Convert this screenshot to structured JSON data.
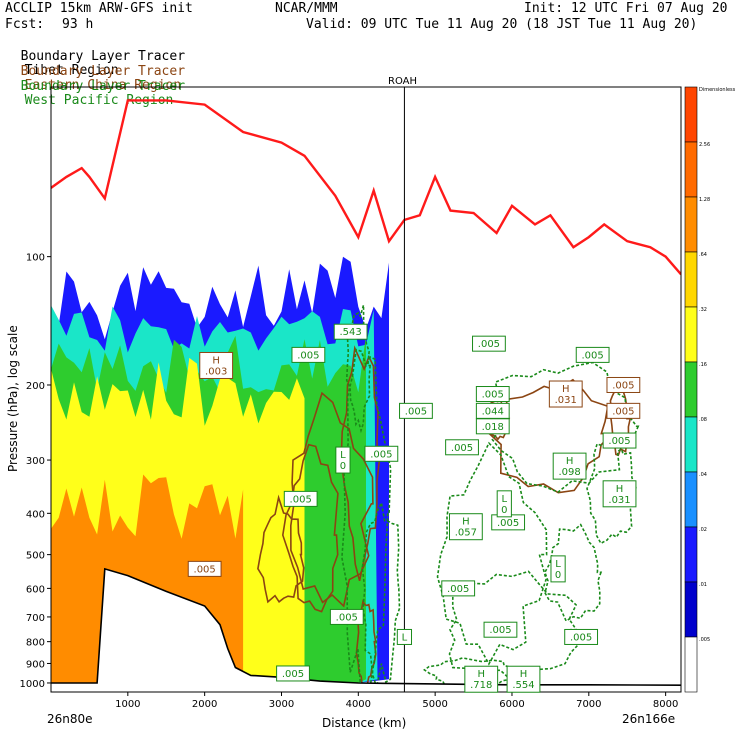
{
  "header": {
    "model": "ACCLIP 15km ARW-GFS init",
    "org": "NCAR/MMM",
    "init": "Init: 12 UTC Fri 07 Aug 20",
    "fcst_label": "Fcst:",
    "fcst_value": "93 h",
    "valid": "Valid: 09 UTC Tue 11 Aug 20 (18 JST Tue 11 Aug 20)"
  },
  "legend": [
    {
      "left": "Boundary Layer Tracer",
      "right": "Tibet Region",
      "color": "#000000"
    },
    {
      "left": "Boundary Layer Tracer",
      "right": "Eastern China Region",
      "color": "#8b4513"
    },
    {
      "left": "Boundary Layer Tracer",
      "right": "West Pacific Region",
      "color": "#1a8a1a"
    }
  ],
  "station_label": "ROAH",
  "colors": {
    "tropopause": "#ff1a1a",
    "terrain": "#000000",
    "china": "#8b4513",
    "pacific": "#1a8a1a",
    "fill_blue": "#1a1aff",
    "fill_green": "#2ecc2e",
    "fill_yellow": "#ffff1a",
    "fill_orange": "#ff8c00"
  },
  "chart_data": {
    "type": "cross-section",
    "xlabel": "Distance (km)",
    "ylabel": "Pressure (hPa), log scale",
    "x_ticks": [
      "1000",
      "2000",
      "3000",
      "4000",
      "5000",
      "6000",
      "7000",
      "8000"
    ],
    "y_ticks": [
      "100",
      "200",
      "300",
      "400",
      "500",
      "600",
      "700",
      "800",
      "900",
      "1000"
    ],
    "x_range": [
      0,
      8200
    ],
    "y_range": [
      40,
      1050
    ],
    "y_scale": "log",
    "left_endpoint": "26n80e",
    "right_endpoint": "26n166e",
    "station_x": 4600,
    "tropopause": [
      [
        0,
        69
      ],
      [
        200,
        65
      ],
      [
        400,
        62
      ],
      [
        500,
        65
      ],
      [
        700,
        73
      ],
      [
        1000,
        43
      ],
      [
        1500,
        43
      ],
      [
        2000,
        44
      ],
      [
        2500,
        51
      ],
      [
        3000,
        54
      ],
      [
        3300,
        58
      ],
      [
        3700,
        72
      ],
      [
        4000,
        90
      ],
      [
        4200,
        70
      ],
      [
        4400,
        92
      ],
      [
        4600,
        82
      ],
      [
        4800,
        80
      ],
      [
        5000,
        65
      ],
      [
        5200,
        78
      ],
      [
        5500,
        79
      ],
      [
        5800,
        88
      ],
      [
        6000,
        76
      ],
      [
        6300,
        84
      ],
      [
        6500,
        80
      ],
      [
        6800,
        95
      ],
      [
        7000,
        90
      ],
      [
        7200,
        84
      ],
      [
        7500,
        92
      ],
      [
        7800,
        95
      ],
      [
        8000,
        100
      ],
      [
        8200,
        110
      ]
    ],
    "terrain": [
      [
        0,
        1000
      ],
      [
        600,
        1000
      ],
      [
        700,
        540
      ],
      [
        1000,
        560
      ],
      [
        1500,
        610
      ],
      [
        2000,
        660
      ],
      [
        2200,
        730
      ],
      [
        2300,
        830
      ],
      [
        2400,
        920
      ],
      [
        2600,
        960
      ],
      [
        3000,
        970
      ],
      [
        3500,
        990
      ],
      [
        4000,
        1000
      ],
      [
        5000,
        1005
      ],
      [
        6000,
        1010
      ],
      [
        7000,
        1010
      ],
      [
        8200,
        1012
      ]
    ],
    "colorbar_labels": [
      "Dimensionless",
      "2.56",
      "1.28",
      ".64",
      ".32",
      ".16",
      ".08",
      ".04",
      ".02",
      ".01",
      ".005"
    ],
    "colorbar_colors": [
      "#ff4500",
      "#ff6a00",
      "#ff8c00",
      "#ffd700",
      "#ffff1a",
      "#2ecc2e",
      "#1ae6c8",
      "#1a90ff",
      "#1a1aff",
      "#0000cc",
      "#ffffff"
    ],
    "annotations": [
      {
        "text": ".005",
        "x": 2000,
        "p": 540,
        "color": "#8b4513"
      },
      {
        "text": "H .003",
        "x": 2150,
        "p": 180,
        "color": "#8b4513"
      },
      {
        "text": ".543",
        "x": 3900,
        "p": 150,
        "color": "#1a8a1a"
      },
      {
        "text": ".005",
        "x": 3350,
        "p": 170,
        "color": "#1a8a1a"
      },
      {
        "text": ".005",
        "x": 5700,
        "p": 160,
        "color": "#1a8a1a"
      },
      {
        "text": ".005",
        "x": 7050,
        "p": 170,
        "color": "#1a8a1a"
      },
      {
        "text": ".005",
        "x": 4750,
        "p": 230,
        "color": "#1a8a1a"
      },
      {
        "text": ".005",
        "x": 4300,
        "p": 290,
        "color": "#1a8a1a"
      },
      {
        "text": ".005",
        "x": 5350,
        "p": 280,
        "color": "#1a8a1a"
      },
      {
        "text": ".005",
        "x": 7450,
        "p": 200,
        "color": "#8b4513"
      },
      {
        "text": ".005",
        "x": 7450,
        "p": 230,
        "color": "#8b4513"
      },
      {
        "text": ".005",
        "x": 7400,
        "p": 270,
        "color": "#1a8a1a"
      },
      {
        "text": ".005",
        "x": 3250,
        "p": 370,
        "color": "#1a8a1a"
      },
      {
        "text": ".005",
        "x": 3150,
        "p": 950,
        "color": "#1a8a1a"
      },
      {
        "text": ".005",
        "x": 5300,
        "p": 600,
        "color": "#1a8a1a"
      },
      {
        "text": ".005",
        "x": 5950,
        "p": 420,
        "color": "#1a8a1a"
      },
      {
        "text": ".005",
        "x": 5850,
        "p": 750,
        "color": "#1a8a1a"
      },
      {
        "text": ".005",
        "x": 6900,
        "p": 780,
        "color": "#1a8a1a"
      },
      {
        "text": ".005",
        "x": 5750,
        "p": 210,
        "color": "#1a8a1a"
      },
      {
        "text": ".005",
        "x": 3850,
        "p": 700,
        "color": "#1a8a1a"
      },
      {
        "text": ".044",
        "x": 5750,
        "p": 230,
        "color": "#1a8a1a"
      },
      {
        "text": ".018",
        "x": 5750,
        "p": 250,
        "color": "#1a8a1a"
      },
      {
        "text": "H .031",
        "x": 6700,
        "p": 210,
        "color": "#8b4513"
      },
      {
        "text": "H .098",
        "x": 6750,
        "p": 310,
        "color": "#1a8a1a"
      },
      {
        "text": "H .031",
        "x": 7400,
        "p": 360,
        "color": "#1a8a1a"
      },
      {
        "text": "H .057",
        "x": 5400,
        "p": 430,
        "color": "#1a8a1a"
      },
      {
        "text": "L 0",
        "x": 5900,
        "p": 380,
        "color": "#1a8a1a"
      },
      {
        "text": "L 0",
        "x": 6600,
        "p": 540,
        "color": "#1a8a1a"
      },
      {
        "text": "L 0",
        "x": 3800,
        "p": 300,
        "color": "#1a8a1a"
      },
      {
        "text": "L",
        "x": 4600,
        "p": 780,
        "color": "#1a8a1a"
      },
      {
        "text": "H .718",
        "x": 5600,
        "p": 980,
        "color": "#1a8a1a"
      },
      {
        "text": "H .554",
        "x": 6150,
        "p": 980,
        "color": "#1a8a1a"
      }
    ]
  }
}
